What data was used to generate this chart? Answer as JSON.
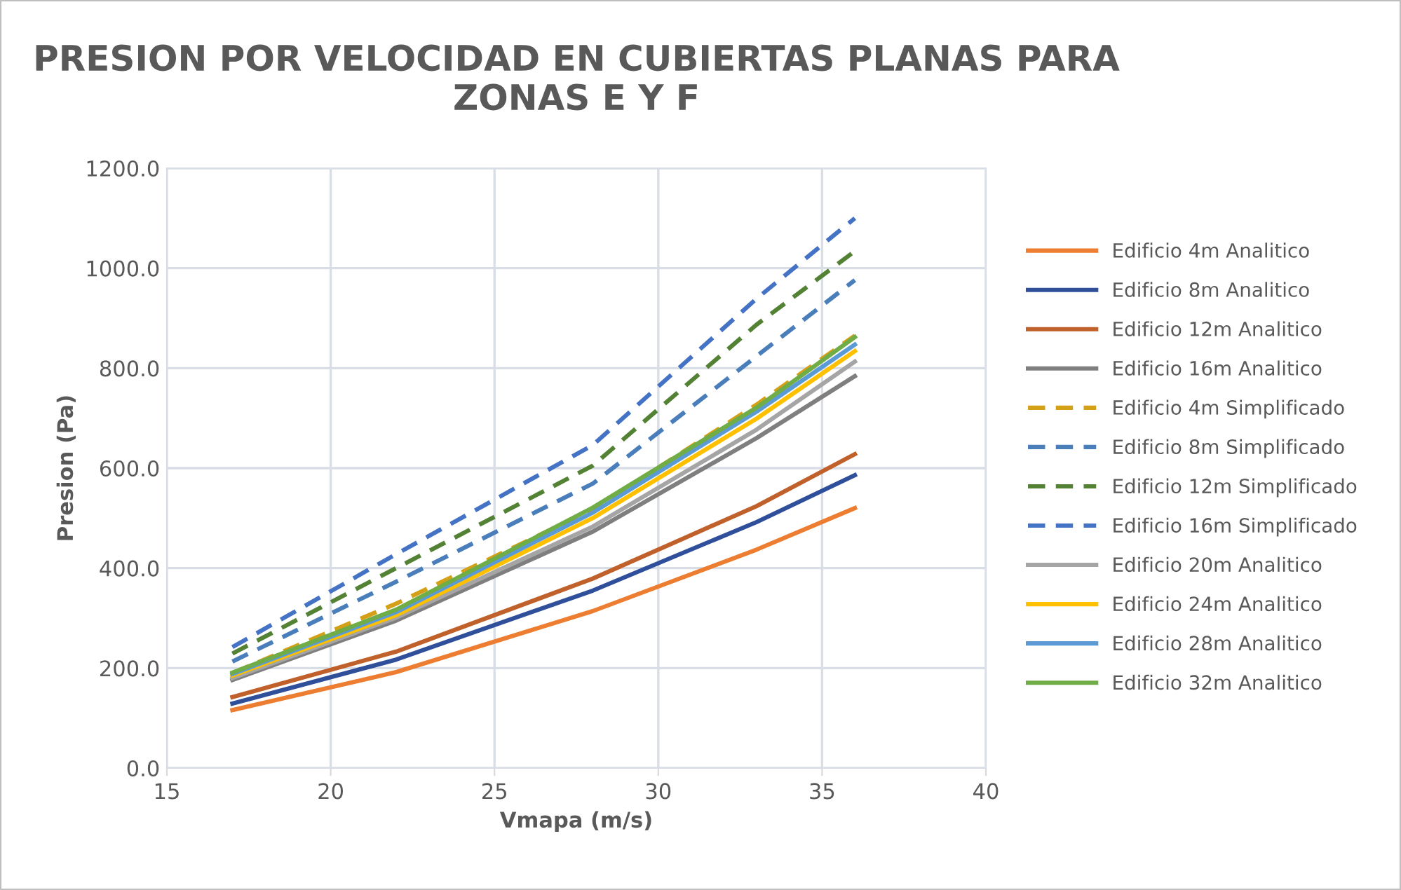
{
  "chart_data": {
    "type": "line",
    "title": "PRESION POR VELOCIDAD EN CUBIERTAS PLANAS PARA\nZONAS E Y F",
    "xlabel": "Vmapa (m/s)",
    "ylabel": "Presion (Pa)",
    "x": [
      17,
      22,
      28,
      33,
      36
    ],
    "series": [
      {
        "name": "Edificio 4m Analitico",
        "color": "#ed7d31",
        "values": [
          116,
          192,
          314,
          437,
          520
        ]
      },
      {
        "name": "Edificio 8m Analitico",
        "color": "#2f4f9a",
        "values": [
          129,
          217,
          355,
          492,
          586
        ]
      },
      {
        "name": "Edificio 12m Analitico",
        "color": "#c0602a",
        "values": [
          142,
          233,
          379,
          524,
          628
        ]
      },
      {
        "name": "Edificio 16m Analitico",
        "color": "#7f7f7f",
        "values": [
          176,
          295,
          473,
          660,
          784
        ]
      },
      {
        "name": "Edificio 4m Simplificado",
        "color": "#d4a017",
        "line_style": "dashed",
        "values": [
          190,
          329,
          517,
          727,
          865
        ]
      },
      {
        "name": "Edificio 8m Simplificado",
        "color": "#4a7ebb",
        "line_style": "dashed",
        "values": [
          213,
          373,
          569,
          824,
          976
        ]
      },
      {
        "name": "Edificio 12m Simplificado",
        "color": "#548235",
        "line_style": "dashed",
        "values": [
          229,
          400,
          605,
          887,
          1034
        ]
      },
      {
        "name": "Edificio 16m Simplificado",
        "color": "#4472c4",
        "line_style": "dashed",
        "values": [
          242,
          428,
          646,
          939,
          1100
        ]
      },
      {
        "name": "Edificio 20m Analitico",
        "color": "#a5a5a5",
        "values": [
          180,
          301,
          483,
          677,
          813
        ]
      },
      {
        "name": "Edificio 24m Analitico",
        "color": "#ffc000",
        "values": [
          185,
          306,
          500,
          699,
          834
        ]
      },
      {
        "name": "Edificio 28m Analitico",
        "color": "#5b9bd5",
        "values": [
          188,
          312,
          511,
          713,
          847
        ]
      },
      {
        "name": "Edificio 32m Analitico",
        "color": "#70ad47",
        "values": [
          191,
          317,
          521,
          721,
          862
        ]
      }
    ],
    "xlim": [
      15,
      40
    ],
    "xticks": [
      15,
      20,
      25,
      30,
      35,
      40
    ],
    "ylim": [
      0,
      1200
    ],
    "yticks": [
      {
        "value": 0,
        "label": "0.0"
      },
      {
        "value": 200,
        "label": "200.0"
      },
      {
        "value": 400,
        "label": "400.0"
      },
      {
        "value": 600,
        "label": "600.0"
      },
      {
        "value": 800,
        "label": "800.0"
      },
      {
        "value": 1000,
        "label": "1000.0"
      },
      {
        "value": 1200,
        "label": "1200.0"
      }
    ],
    "grid": true,
    "legend": "right",
    "marker": "none",
    "line_style": "solid"
  }
}
